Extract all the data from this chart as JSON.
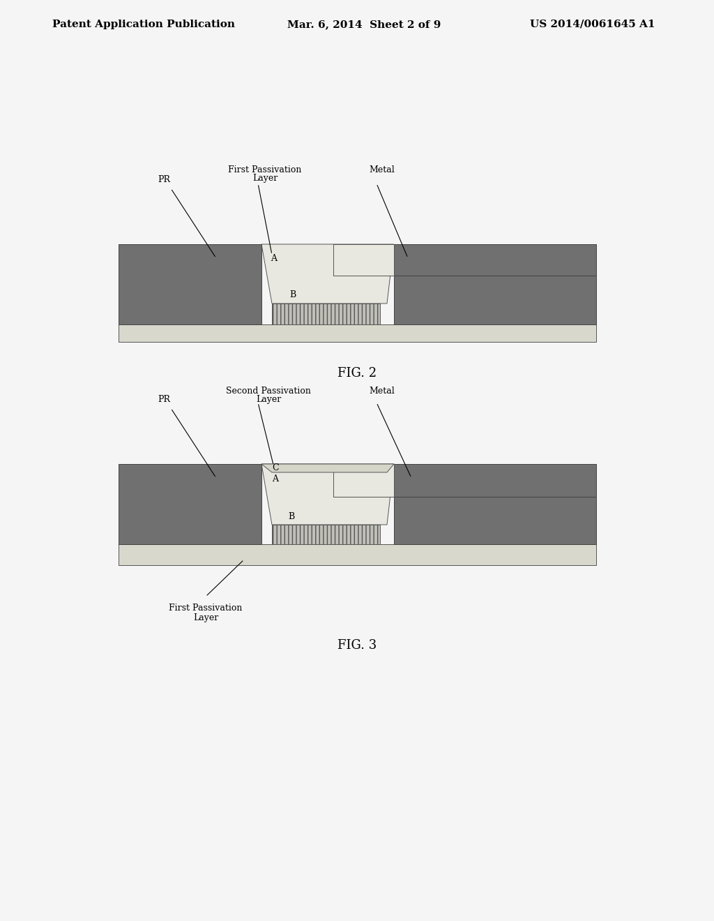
{
  "bg_color": "#f5f5f5",
  "header_left": "Patent Application Publication",
  "header_mid": "Mar. 6, 2014  Sheet 2 of 9",
  "header_right": "US 2014/0061645 A1",
  "fig2_label": "FIG. 2",
  "fig3_label": "FIG. 3",
  "dark_gray": "#707070",
  "light_layer": "#d8d8cc",
  "white_step": "#e8e8e0",
  "hatched_color": "#c0c0b8",
  "border_color": "#444444",
  "text_color": "#111111"
}
